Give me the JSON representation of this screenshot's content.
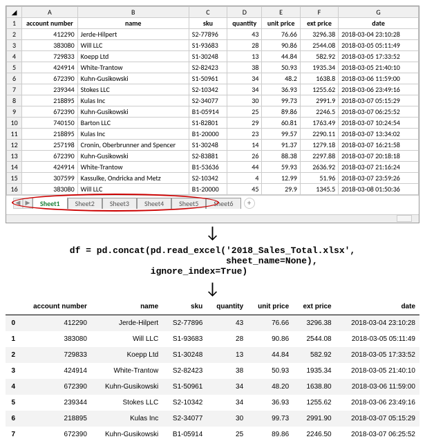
{
  "excel": {
    "col_letters": [
      "A",
      "B",
      "C",
      "D",
      "E",
      "F",
      "G"
    ],
    "headers": [
      "account number",
      "name",
      "sku",
      "quantity",
      "unit price",
      "ext price",
      "date"
    ],
    "rows": [
      [
        "412290",
        "Jerde-Hilpert",
        "S2-77896",
        "43",
        "76.66",
        "3296.38",
        "2018-03-04 23:10:28"
      ],
      [
        "383080",
        "Will LLC",
        "S1-93683",
        "28",
        "90.86",
        "2544.08",
        "2018-03-05 05:11:49"
      ],
      [
        "729833",
        "Koepp Ltd",
        "S1-30248",
        "13",
        "44.84",
        "582.92",
        "2018-03-05 17:33:52"
      ],
      [
        "424914",
        "White-Trantow",
        "S2-82423",
        "38",
        "50.93",
        "1935.34",
        "2018-03-05 21:40:10"
      ],
      [
        "672390",
        "Kuhn-Gusikowski",
        "S1-50961",
        "34",
        "48.2",
        "1638.8",
        "2018-03-06 11:59:00"
      ],
      [
        "239344",
        "Stokes LLC",
        "S2-10342",
        "34",
        "36.93",
        "1255.62",
        "2018-03-06 23:49:16"
      ],
      [
        "218895",
        "Kulas Inc",
        "S2-34077",
        "30",
        "99.73",
        "2991.9",
        "2018-03-07 05:15:29"
      ],
      [
        "672390",
        "Kuhn-Gusikowski",
        "B1-05914",
        "25",
        "89.86",
        "2246.5",
        "2018-03-07 06:25:52"
      ],
      [
        "740150",
        "Barton LLC",
        "S1-82801",
        "29",
        "60.81",
        "1763.49",
        "2018-03-07 10:24:54"
      ],
      [
        "218895",
        "Kulas Inc",
        "B1-20000",
        "23",
        "99.57",
        "2290.11",
        "2018-03-07 13:34:02"
      ],
      [
        "257198",
        "Cronin, Oberbrunner and Spencer",
        "S1-30248",
        "14",
        "91.37",
        "1279.18",
        "2018-03-07 16:21:58"
      ],
      [
        "672390",
        "Kuhn-Gusikowski",
        "S2-83881",
        "26",
        "88.38",
        "2297.88",
        "2018-03-07 20:18:18"
      ],
      [
        "424914",
        "White-Trantow",
        "B1-53636",
        "44",
        "59.93",
        "2636.92",
        "2018-03-07 21:16:24"
      ],
      [
        "307599",
        "Kassulke, Ondricka and Metz",
        "S2-10342",
        "4",
        "12.99",
        "51.96",
        "2018-03-07 23:59:26"
      ],
      [
        "383080",
        "Will LLC",
        "B1-20000",
        "45",
        "29.9",
        "1345.5",
        "2018-03-08 01:50:36"
      ]
    ],
    "tabs": [
      "Sheet1",
      "Sheet2",
      "Sheet3",
      "Sheet4",
      "Sheet5",
      "Sheet6"
    ]
  },
  "code": {
    "line1": "df = pd.concat(pd.read_excel('2018_Sales_Total.xlsx',",
    "line2": "                             sheet_name=None),",
    "line3": "               ignore_index=True)"
  },
  "pandas": {
    "headers": [
      "account number",
      "name",
      "sku",
      "quantity",
      "unit price",
      "ext price",
      "date"
    ],
    "rows": [
      [
        "0",
        "412290",
        "Jerde-Hilpert",
        "S2-77896",
        "43",
        "76.66",
        "3296.38",
        "2018-03-04 23:10:28"
      ],
      [
        "1",
        "383080",
        "Will LLC",
        "S1-93683",
        "28",
        "90.86",
        "2544.08",
        "2018-03-05 05:11:49"
      ],
      [
        "2",
        "729833",
        "Koepp Ltd",
        "S1-30248",
        "13",
        "44.84",
        "582.92",
        "2018-03-05 17:33:52"
      ],
      [
        "3",
        "424914",
        "White-Trantow",
        "S2-82423",
        "38",
        "50.93",
        "1935.34",
        "2018-03-05 21:40:10"
      ],
      [
        "4",
        "672390",
        "Kuhn-Gusikowski",
        "S1-50961",
        "34",
        "48.20",
        "1638.80",
        "2018-03-06 11:59:00"
      ],
      [
        "5",
        "239344",
        "Stokes LLC",
        "S2-10342",
        "34",
        "36.93",
        "1255.62",
        "2018-03-06 23:49:16"
      ],
      [
        "6",
        "218895",
        "Kulas Inc",
        "S2-34077",
        "30",
        "99.73",
        "2991.90",
        "2018-03-07 05:15:29"
      ],
      [
        "7",
        "672390",
        "Kuhn-Gusikowski",
        "B1-05914",
        "25",
        "89.86",
        "2246.50",
        "2018-03-07 06:25:52"
      ]
    ]
  }
}
